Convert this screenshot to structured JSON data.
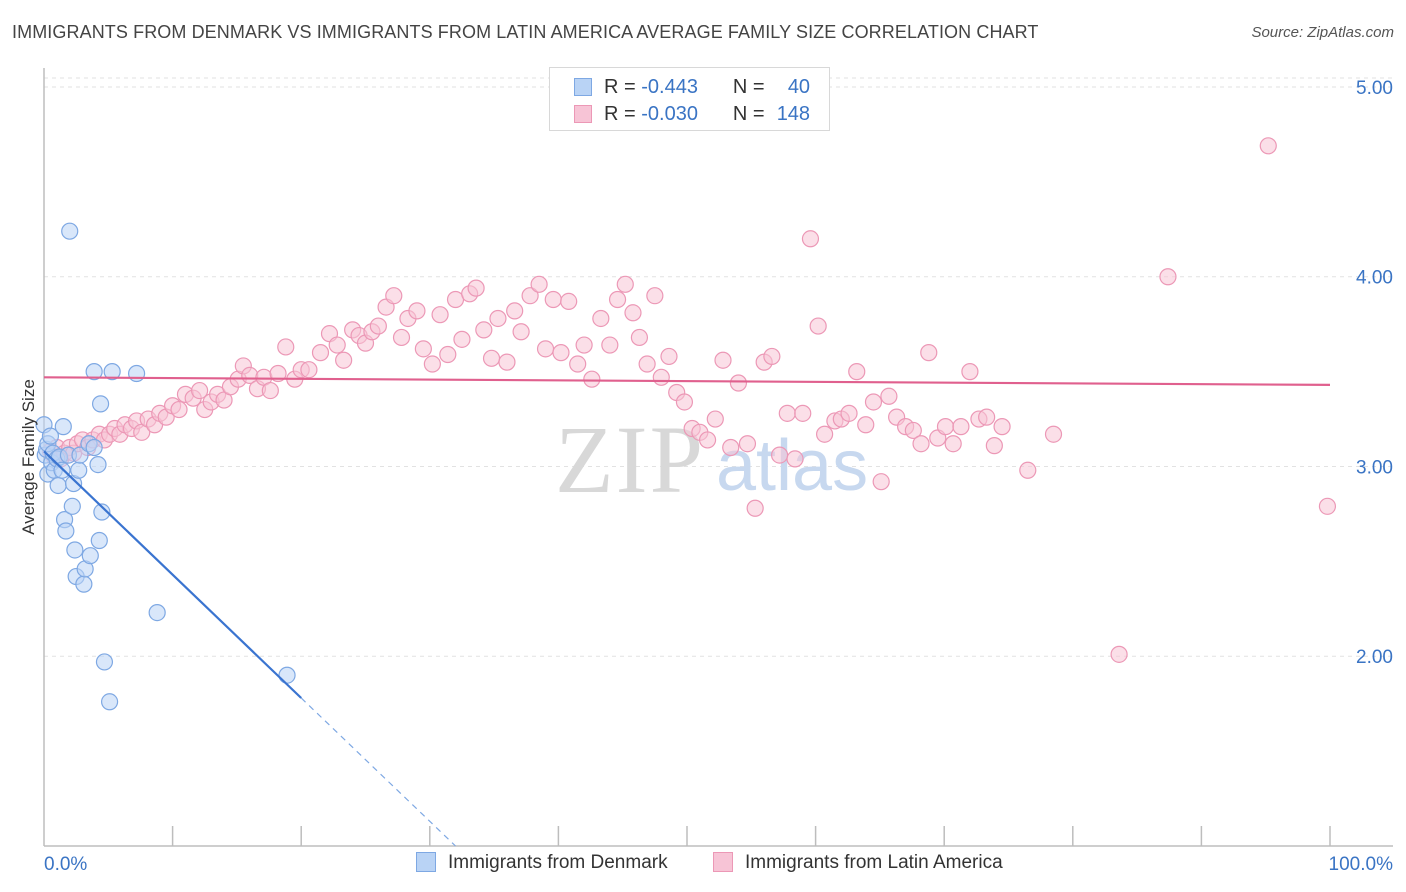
{
  "title": "IMMIGRANTS FROM DENMARK VS IMMIGRANTS FROM LATIN AMERICA AVERAGE FAMILY SIZE CORRELATION CHART",
  "source": "Source: ZipAtlas.com",
  "watermark": {
    "zip": "ZIP",
    "atlas": "atlas"
  },
  "colors": {
    "blue": "#3a74d0",
    "blue_fill": "#b9d3f5",
    "blue_stroke": "#7ea8e3",
    "pink": "#e0608e",
    "pink_fill": "#f7c4d6",
    "pink_stroke": "#ec98b6",
    "axis_text": "#3a74c4",
    "grid": "#e2e2e2"
  },
  "legend": {
    "rows": [
      {
        "r_label": "R =",
        "r_value": "-0.443",
        "n_label": "N =",
        "n_value": "40"
      },
      {
        "r_label": "R =",
        "r_value": "-0.030",
        "n_label": "N =",
        "n_value": "148"
      }
    ]
  },
  "bottom_legend": {
    "denmark": "Immigrants from Denmark",
    "latam": "Immigrants from Latin America"
  },
  "chart_data": {
    "type": "scatter",
    "title": "IMMIGRANTS FROM DENMARK VS IMMIGRANTS FROM LATIN AMERICA AVERAGE FAMILY SIZE CORRELATION CHART",
    "xlabel": "",
    "ylabel": "Average Family Size",
    "xlim": [
      0,
      100
    ],
    "ylim": [
      1.0,
      5.1
    ],
    "x_tick_labels": [
      "0.0%",
      "100.0%"
    ],
    "y_ticks": [
      2.0,
      3.0,
      4.0,
      5.0
    ],
    "y_tick_labels": [
      "2.00",
      "3.00",
      "4.00",
      "5.00"
    ],
    "grid": true,
    "series": [
      {
        "name": "Immigrants from Denmark",
        "R": -0.443,
        "N": 40,
        "trend": {
          "x0": 0.0,
          "y0": 3.08,
          "x1": 20.0,
          "y1": 1.78,
          "dashed_to_x": 32.0,
          "dashed_to_y": 1.0
        },
        "points": [
          [
            0.0,
            3.22
          ],
          [
            0.1,
            3.06
          ],
          [
            0.2,
            3.09
          ],
          [
            0.3,
            2.96
          ],
          [
            0.3,
            3.12
          ],
          [
            0.5,
            3.16
          ],
          [
            0.6,
            3.02
          ],
          [
            0.7,
            3.07
          ],
          [
            0.8,
            2.98
          ],
          [
            1.0,
            3.04
          ],
          [
            1.1,
            2.9
          ],
          [
            1.2,
            3.05
          ],
          [
            1.4,
            2.98
          ],
          [
            1.5,
            3.21
          ],
          [
            1.6,
            2.72
          ],
          [
            1.7,
            2.66
          ],
          [
            1.9,
            3.06
          ],
          [
            2.0,
            4.24
          ],
          [
            2.2,
            2.79
          ],
          [
            2.3,
            2.91
          ],
          [
            2.4,
            2.56
          ],
          [
            2.5,
            2.42
          ],
          [
            2.7,
            2.98
          ],
          [
            2.8,
            3.06
          ],
          [
            3.1,
            2.38
          ],
          [
            3.2,
            2.46
          ],
          [
            3.5,
            3.12
          ],
          [
            3.6,
            2.53
          ],
          [
            3.9,
            3.5
          ],
          [
            3.9,
            3.1
          ],
          [
            4.2,
            3.01
          ],
          [
            4.3,
            2.61
          ],
          [
            4.4,
            3.33
          ],
          [
            4.5,
            2.76
          ],
          [
            4.7,
            1.97
          ],
          [
            5.3,
            3.5
          ],
          [
            5.1,
            1.76
          ],
          [
            7.2,
            3.49
          ],
          [
            8.8,
            2.23
          ],
          [
            18.9,
            1.9
          ]
        ]
      },
      {
        "name": "Immigrants from Latin America",
        "R": -0.03,
        "N": 148,
        "trend": {
          "x0": 0.0,
          "y0": 3.47,
          "x1": 100.0,
          "y1": 3.43
        },
        "points": [
          [
            0.5,
            3.08
          ],
          [
            0.8,
            3.05
          ],
          [
            1.0,
            3.1
          ],
          [
            1.3,
            3.04
          ],
          [
            1.6,
            3.07
          ],
          [
            2.0,
            3.1
          ],
          [
            2.3,
            3.07
          ],
          [
            2.6,
            3.12
          ],
          [
            3.0,
            3.14
          ],
          [
            3.4,
            3.1
          ],
          [
            3.8,
            3.14
          ],
          [
            4.3,
            3.17
          ],
          [
            4.7,
            3.14
          ],
          [
            5.1,
            3.17
          ],
          [
            5.5,
            3.2
          ],
          [
            5.9,
            3.17
          ],
          [
            6.3,
            3.22
          ],
          [
            6.8,
            3.2
          ],
          [
            7.2,
            3.24
          ],
          [
            7.6,
            3.18
          ],
          [
            8.1,
            3.25
          ],
          [
            8.6,
            3.22
          ],
          [
            9.0,
            3.28
          ],
          [
            9.5,
            3.26
          ],
          [
            10.0,
            3.32
          ],
          [
            10.5,
            3.3
          ],
          [
            11.0,
            3.38
          ],
          [
            11.6,
            3.36
          ],
          [
            12.1,
            3.4
          ],
          [
            12.5,
            3.3
          ],
          [
            13.0,
            3.34
          ],
          [
            13.5,
            3.38
          ],
          [
            14.0,
            3.35
          ],
          [
            14.5,
            3.42
          ],
          [
            15.1,
            3.46
          ],
          [
            15.5,
            3.53
          ],
          [
            16.0,
            3.48
          ],
          [
            16.6,
            3.41
          ],
          [
            17.1,
            3.47
          ],
          [
            17.6,
            3.4
          ],
          [
            18.2,
            3.49
          ],
          [
            18.8,
            3.63
          ],
          [
            19.5,
            3.46
          ],
          [
            20.0,
            3.51
          ],
          [
            20.6,
            3.51
          ],
          [
            21.5,
            3.6
          ],
          [
            22.2,
            3.7
          ],
          [
            22.8,
            3.64
          ],
          [
            23.3,
            3.56
          ],
          [
            24.0,
            3.72
          ],
          [
            24.5,
            3.69
          ],
          [
            25.0,
            3.65
          ],
          [
            25.5,
            3.71
          ],
          [
            26.0,
            3.74
          ],
          [
            26.6,
            3.84
          ],
          [
            27.2,
            3.9
          ],
          [
            27.8,
            3.68
          ],
          [
            28.3,
            3.78
          ],
          [
            29.0,
            3.82
          ],
          [
            29.5,
            3.62
          ],
          [
            30.2,
            3.54
          ],
          [
            30.8,
            3.8
          ],
          [
            31.4,
            3.59
          ],
          [
            32.0,
            3.88
          ],
          [
            32.5,
            3.67
          ],
          [
            33.1,
            3.91
          ],
          [
            33.6,
            3.94
          ],
          [
            34.2,
            3.72
          ],
          [
            34.8,
            3.57
          ],
          [
            35.3,
            3.78
          ],
          [
            36.0,
            3.55
          ],
          [
            36.6,
            3.82
          ],
          [
            37.1,
            3.71
          ],
          [
            37.8,
            3.9
          ],
          [
            38.5,
            3.96
          ],
          [
            39.0,
            3.62
          ],
          [
            39.6,
            3.88
          ],
          [
            40.2,
            3.6
          ],
          [
            40.8,
            3.87
          ],
          [
            41.5,
            3.54
          ],
          [
            42.0,
            3.64
          ],
          [
            42.6,
            3.46
          ],
          [
            43.3,
            3.78
          ],
          [
            44.0,
            3.64
          ],
          [
            44.6,
            3.88
          ],
          [
            45.2,
            3.96
          ],
          [
            45.8,
            3.81
          ],
          [
            46.3,
            3.68
          ],
          [
            46.9,
            3.54
          ],
          [
            47.5,
            3.9
          ],
          [
            48.0,
            3.47
          ],
          [
            48.6,
            3.58
          ],
          [
            49.2,
            3.39
          ],
          [
            49.8,
            3.34
          ],
          [
            50.4,
            3.2
          ],
          [
            51.0,
            3.18
          ],
          [
            51.6,
            3.14
          ],
          [
            52.2,
            3.25
          ],
          [
            52.8,
            3.56
          ],
          [
            53.4,
            3.1
          ],
          [
            54.0,
            3.44
          ],
          [
            54.7,
            3.12
          ],
          [
            55.3,
            2.78
          ],
          [
            56.0,
            3.55
          ],
          [
            56.6,
            3.58
          ],
          [
            57.2,
            3.06
          ],
          [
            57.8,
            3.28
          ],
          [
            58.4,
            3.04
          ],
          [
            59.0,
            3.28
          ],
          [
            59.6,
            4.2
          ],
          [
            60.2,
            3.74
          ],
          [
            60.7,
            3.17
          ],
          [
            61.5,
            3.24
          ],
          [
            62.0,
            3.25
          ],
          [
            62.6,
            3.28
          ],
          [
            63.2,
            3.5
          ],
          [
            63.9,
            3.22
          ],
          [
            64.5,
            3.34
          ],
          [
            65.1,
            2.92
          ],
          [
            65.7,
            3.37
          ],
          [
            66.3,
            3.26
          ],
          [
            67.0,
            3.21
          ],
          [
            67.6,
            3.19
          ],
          [
            68.2,
            3.12
          ],
          [
            68.8,
            3.6
          ],
          [
            69.5,
            3.15
          ],
          [
            70.1,
            3.21
          ],
          [
            70.7,
            3.12
          ],
          [
            71.3,
            3.21
          ],
          [
            72.0,
            3.5
          ],
          [
            72.7,
            3.25
          ],
          [
            73.3,
            3.26
          ],
          [
            73.9,
            3.11
          ],
          [
            74.5,
            3.21
          ],
          [
            76.5,
            2.98
          ],
          [
            78.5,
            3.17
          ],
          [
            83.6,
            2.01
          ],
          [
            87.4,
            4.0
          ],
          [
            95.2,
            4.69
          ],
          [
            99.8,
            2.79
          ]
        ]
      }
    ]
  }
}
